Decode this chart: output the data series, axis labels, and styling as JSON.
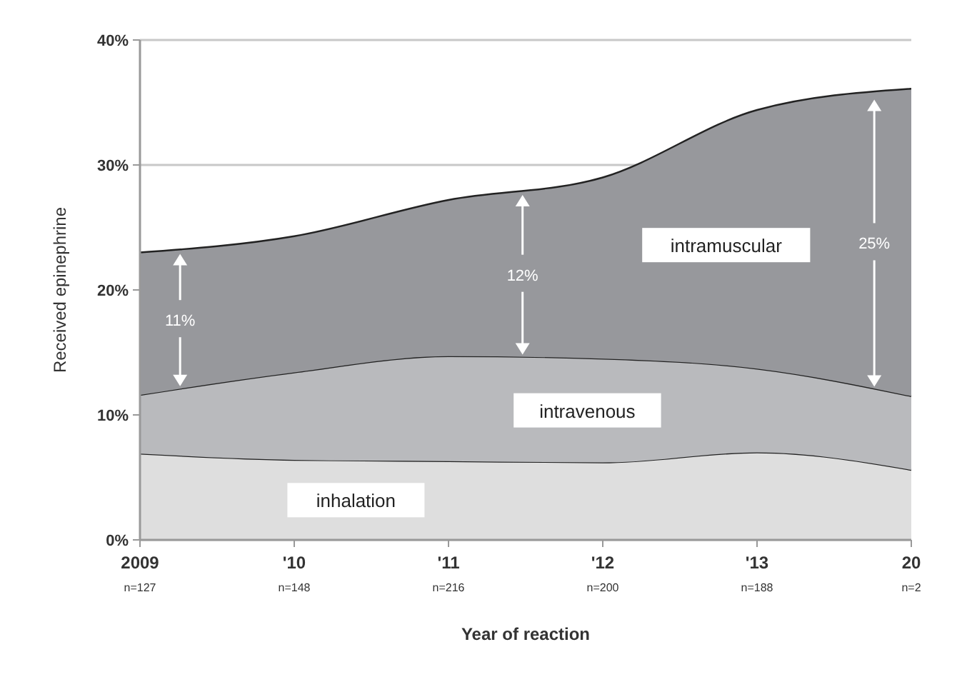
{
  "chart_data": {
    "type": "area",
    "stacked": true,
    "xlabel": "Year of reaction",
    "ylabel": "Received epinephrine",
    "categories": [
      "2009\nn=127",
      "'10\nn=148",
      "'11\nn=216",
      "'12\nn=200",
      "'13\nn=188",
      "20\nn=2"
    ],
    "series": [
      {
        "name": "inhalation",
        "color": "#dedede",
        "values": [
          6.9,
          6.4,
          6.3,
          6.2,
          7.0,
          5.6
        ]
      },
      {
        "name": "intravenous",
        "color": "#b9babd",
        "values": [
          4.7,
          7.0,
          8.4,
          8.3,
          6.7,
          5.9
        ]
      },
      {
        "name": "intramuscular",
        "color": "#97989c",
        "values": [
          11.4,
          10.9,
          12.5,
          14.5,
          20.7,
          24.6
        ]
      }
    ],
    "ylim": [
      0,
      40
    ],
    "yticks": [
      {
        "value": 0,
        "label": "0%"
      },
      {
        "value": 10,
        "label": "10%"
      },
      {
        "value": 20,
        "label": "20%"
      },
      {
        "value": 30,
        "label": "30%"
      },
      {
        "value": 40,
        "label": "40%"
      }
    ],
    "grid": "y",
    "legend": false,
    "annotations": [
      "11%",
      "12%",
      "25%"
    ]
  }
}
